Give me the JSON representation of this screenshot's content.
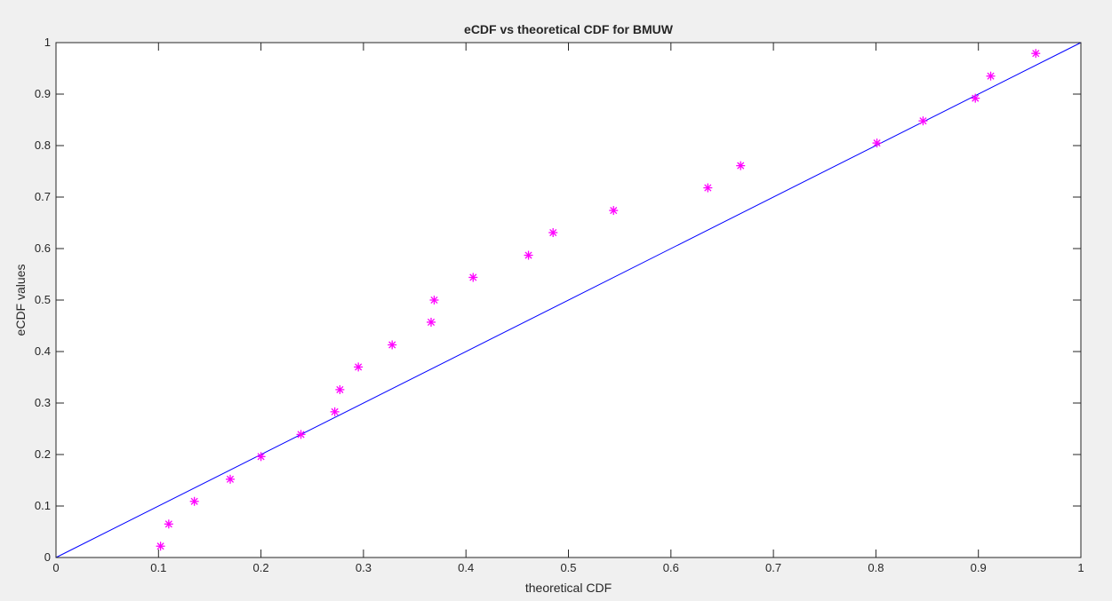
{
  "chart_data": {
    "type": "scatter",
    "title": "eCDF vs theoretical CDF for BMUW",
    "xlabel": "theoretical CDF",
    "ylabel": "eCDF values",
    "xlim": [
      0,
      1
    ],
    "ylim": [
      0,
      1
    ],
    "xticks": [
      "0",
      "0.1",
      "0.2",
      "0.3",
      "0.4",
      "0.5",
      "0.6",
      "0.7",
      "0.8",
      "0.9",
      "1"
    ],
    "yticks": [
      "0",
      "0.1",
      "0.2",
      "0.3",
      "0.4",
      "0.5",
      "0.6",
      "0.7",
      "0.8",
      "0.9",
      "1"
    ],
    "grid": false,
    "legend": false,
    "series": [
      {
        "marker": "*",
        "color": "#ff00ff",
        "x": [
          0.102,
          0.11,
          0.135,
          0.17,
          0.2,
          0.239,
          0.272,
          0.277,
          0.295,
          0.328,
          0.366,
          0.369,
          0.407,
          0.461,
          0.485,
          0.544,
          0.636,
          0.668,
          0.801,
          0.846,
          0.897,
          0.912,
          0.956
        ],
        "y": [
          0.022,
          0.065,
          0.109,
          0.152,
          0.196,
          0.239,
          0.283,
          0.326,
          0.37,
          0.413,
          0.457,
          0.5,
          0.544,
          0.587,
          0.631,
          0.674,
          0.718,
          0.761,
          0.805,
          0.848,
          0.892,
          0.935,
          0.979
        ]
      },
      {
        "style": "line",
        "color": "#0000ff",
        "x": [
          0,
          1
        ],
        "y": [
          0,
          1
        ]
      }
    ]
  }
}
